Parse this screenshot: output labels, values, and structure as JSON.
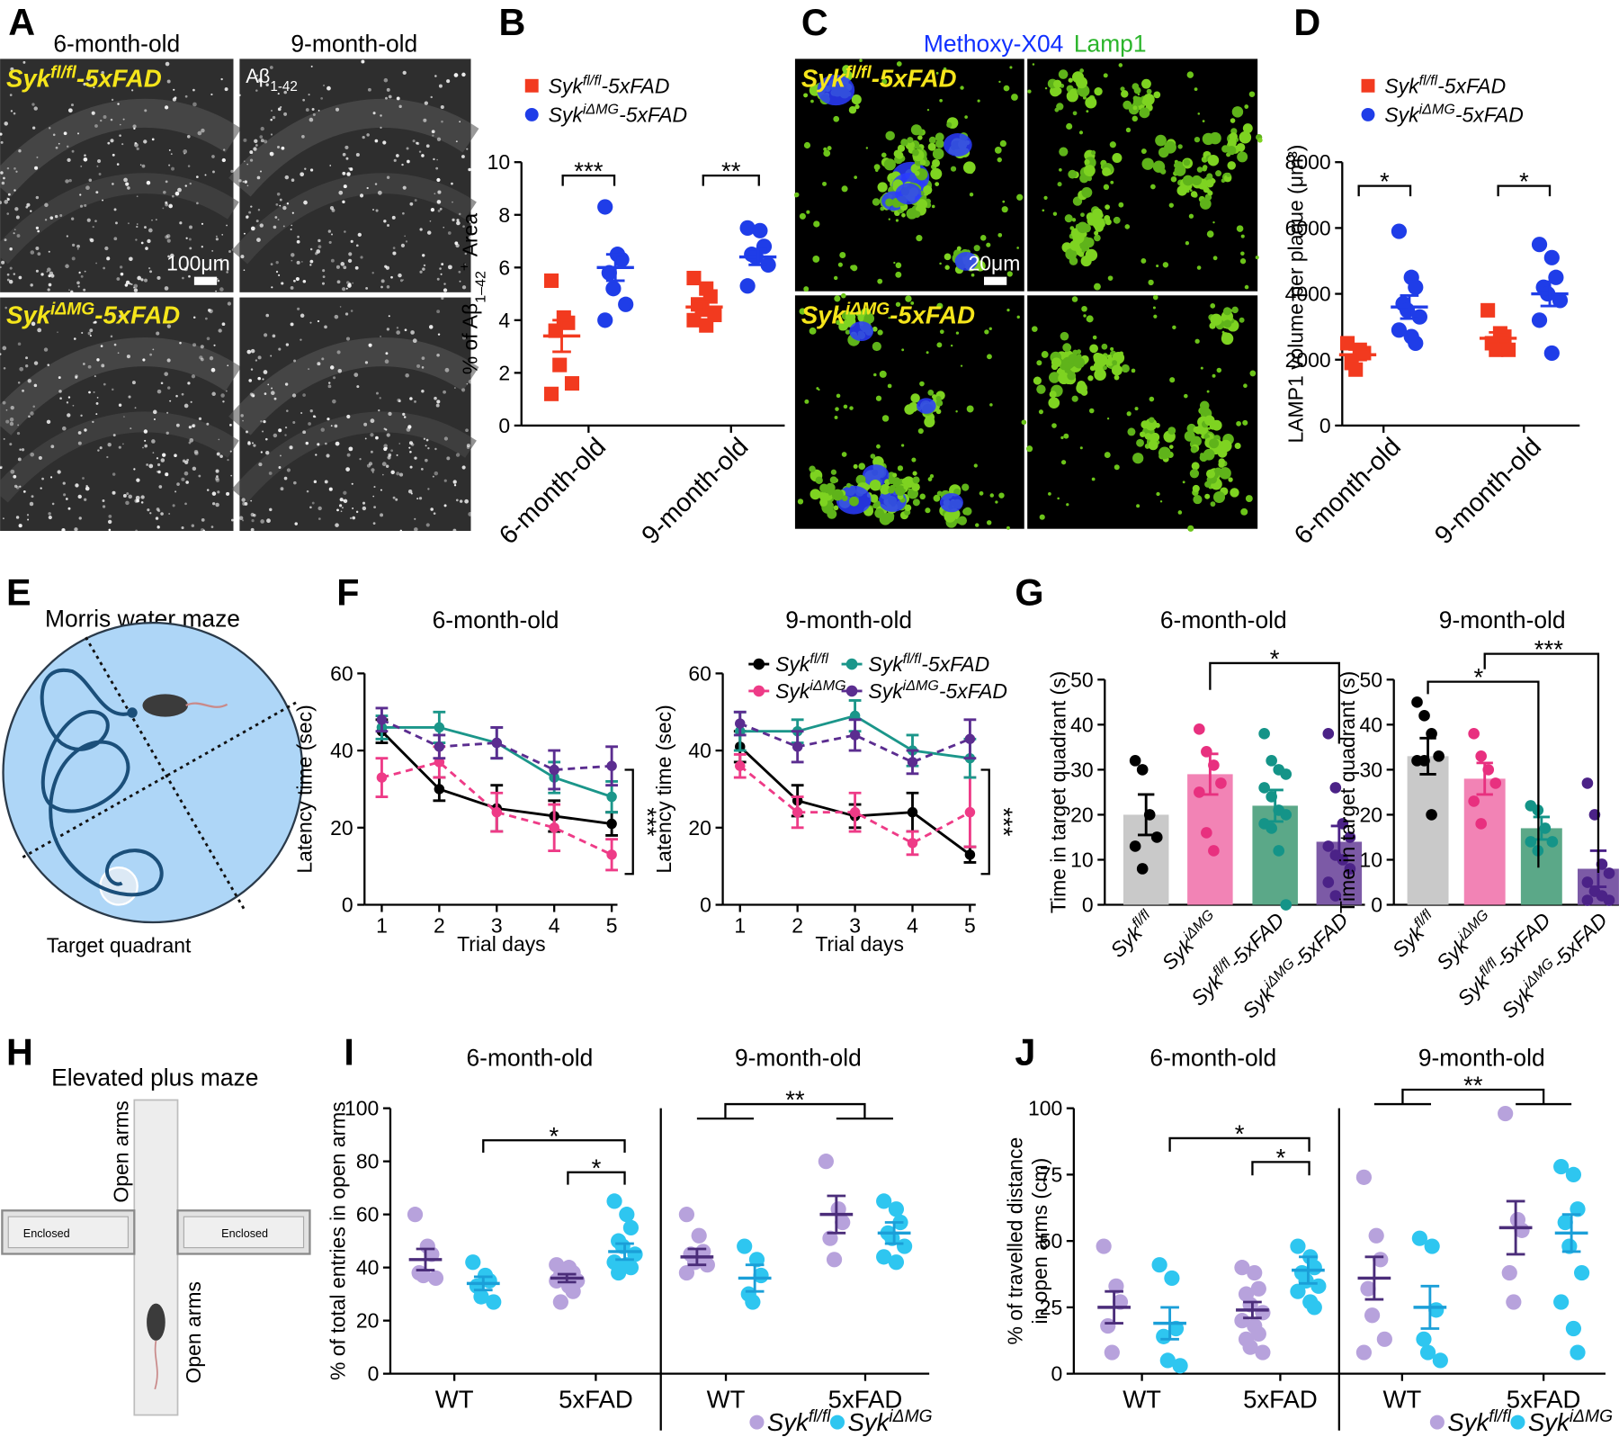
{
  "panel_letters": [
    "A",
    "B",
    "C",
    "D",
    "E",
    "F",
    "G",
    "H",
    "I",
    "J"
  ],
  "panel_a": {
    "column_titles": [
      "6-month-old",
      "9-month-old"
    ],
    "row_labels": [
      {
        "text": "Syk",
        "sup": "fl/fl",
        "after": "-5xFAD"
      },
      {
        "text": "Syk",
        "sup": "iΔMG",
        "after": "-5xFAD"
      }
    ],
    "stain": {
      "text": "Aβ",
      "sub": "1-42"
    },
    "scale_bar": "100μm"
  },
  "panel_c": {
    "stains": [
      "Methoxy-X04",
      "Lamp1"
    ],
    "scale_bar": "20μm"
  },
  "panel_e": {
    "title": "Morris water maze",
    "label": "Target quadrant"
  },
  "panel_h": {
    "title": "Elevated plus maze",
    "arm_labels": [
      "Open arms",
      "Open arms"
    ],
    "enclosed_labels": [
      "Enclosed",
      "Enclosed"
    ]
  },
  "chart_data": [
    {
      "type": "dot-sem",
      "categories": [
        "6-month-old",
        "9-month-old"
      ],
      "ylabel": {
        "text": "% of Aβ",
        "sub": "1–42",
        "sup": "+",
        "after": " Area"
      },
      "ylim": [
        0,
        10
      ],
      "yticks": [
        0,
        2,
        4,
        6,
        8,
        10
      ],
      "series": [
        {
          "name": {
            "text": "Syk",
            "sup": "fl/fl",
            "after": "-5xFAD"
          },
          "color": "#f23a1f",
          "marker": "square"
        },
        {
          "name": {
            "text": "Syk",
            "sup": "iΔMG",
            "after": "-5xFAD"
          },
          "color": "#1f3de8",
          "marker": "circle"
        }
      ],
      "panels": [
        {
          "series": [
            {
              "points": [
                [
                  5.5,
                  4.1,
                  3.9,
                  3.6,
                  2.3,
                  1.6,
                  1.2
                ],
                [
                  5.6,
                  5.2,
                  4.9,
                  4.6,
                  4.4,
                  4.2,
                  4.0,
                  3.8
                ]
              ],
              "mean": [
                3.4,
                4.5
              ],
              "sem": [
                0.6,
                0.2
              ]
            },
            {
              "points": [
                [
                  8.3,
                  6.5,
                  6.3,
                  5.8,
                  5.2,
                  4.6,
                  4.0
                ],
                [
                  7.5,
                  7.4,
                  6.8,
                  6.5,
                  6.4,
                  6.1,
                  5.3
                ]
              ],
              "mean": [
                6.0,
                6.4
              ],
              "sem": [
                0.5,
                0.3
              ]
            }
          ],
          "significance": [
            "***",
            "**"
          ]
        }
      ]
    },
    {
      "type": "dot-sem",
      "categories": [
        "6-month-old",
        "9-month-old"
      ],
      "ylabel": "LAMP1 volume per plaque (μm³)",
      "ylim": [
        0,
        8000
      ],
      "yticks": [
        0,
        2000,
        4000,
        6000,
        8000
      ],
      "series": [
        {
          "name": {
            "text": "Syk",
            "sup": "fl/fl",
            "after": "-5xFAD"
          },
          "color": "#f23a1f",
          "marker": "square"
        },
        {
          "name": {
            "text": "Syk",
            "sup": "iΔMG",
            "after": "-5xFAD"
          },
          "color": "#1f3de8",
          "marker": "circle"
        }
      ],
      "panels": [
        {
          "series": [
            {
              "points": [
                [
                  2500,
                  2300,
                  2200,
                  1900,
                  1700
                ],
                [
                  3500,
                  2800,
                  2700,
                  2500,
                  2300,
                  2300
                ]
              ],
              "mean": [
                2150,
                2650
              ],
              "sem": [
                160,
                180
              ]
            },
            {
              "points": [
                [
                  5900,
                  4500,
                  4200,
                  3700,
                  3500,
                  3300,
                  2900,
                  2700,
                  2500
                ],
                [
                  5500,
                  5100,
                  4500,
                  4200,
                  4000,
                  3800,
                  3200,
                  2200
                ]
              ],
              "mean": [
                3600,
                4000
              ],
              "sem": [
                350,
                370
              ]
            }
          ],
          "significance": [
            "*",
            "*"
          ]
        }
      ]
    },
    {
      "type": "line",
      "x": [
        1,
        2,
        3,
        4,
        5
      ],
      "xlim": [
        0.7,
        5.1
      ],
      "xticks": [
        1,
        2,
        3,
        4,
        5
      ],
      "xlabel": "Trial days",
      "ylabel": "Latency time (sec)",
      "ylim": [
        0,
        60
      ],
      "yticks": [
        0,
        20,
        40,
        60
      ],
      "series": [
        {
          "name": {
            "text": "Syk",
            "sup": "fl/fl"
          },
          "color": "#000000",
          "dash": false
        },
        {
          "name": {
            "text": "Syk",
            "sup": "iΔMG"
          },
          "color": "#ee3b87",
          "dash": true
        },
        {
          "name": {
            "text": "Syk",
            "sup": "fl/fl",
            "after": "-5xFAD"
          },
          "color": "#1b968a",
          "dash": false
        },
        {
          "name": {
            "text": "Syk",
            "sup": "iΔMG",
            "after": "-5xFAD"
          },
          "color": "#5b2d90",
          "dash": true
        }
      ],
      "panels": [
        {
          "title": "6-month-old",
          "values": [
            [
              45,
              30,
              25,
              23,
              21
            ],
            [
              33,
              37,
              24,
              20,
              13
            ],
            [
              46,
              46,
              42,
              33,
              28
            ],
            [
              48,
              41,
              42,
              35,
              36
            ]
          ],
          "err": [
            [
              3,
              3,
              6,
              4,
              3
            ],
            [
              5,
              4,
              5,
              6,
              4
            ],
            [
              3,
              4,
              4,
              4,
              4
            ],
            [
              3,
              3,
              4,
              5,
              5
            ]
          ],
          "significance": "***"
        },
        {
          "title": "9-month-old",
          "values": [
            [
              41,
              27,
              23,
              24,
              13
            ],
            [
              36,
              24,
              24,
              16,
              24
            ],
            [
              45,
              45,
              49,
              40,
              38
            ],
            [
              47,
              41,
              44,
              37,
              43
            ]
          ],
          "err": [
            [
              4,
              4,
              3,
              5,
              2
            ],
            [
              3,
              4,
              5,
              3,
              9
            ],
            [
              5,
              3,
              4,
              4,
              5
            ],
            [
              3,
              4,
              4,
              3,
              5
            ]
          ],
          "significance": "***"
        }
      ]
    },
    {
      "type": "bar",
      "categories": [
        {
          "text": "Syk",
          "sup": "fl/fl"
        },
        {
          "text": "Syk",
          "sup": "iΔMG"
        },
        {
          "text": "Syk",
          "sup": "fl/fl",
          "after": "-5xFAD"
        },
        {
          "text": "Syk",
          "sup": "iΔMG",
          "after": "-5xFAD"
        }
      ],
      "colors": [
        "#c9c9c9",
        "#f283b5",
        "#5ba888",
        "#7c5aa6"
      ],
      "point_colors": [
        "#000000",
        "#e8307f",
        "#149488",
        "#4b2287"
      ],
      "ylabel": "Time in target quadrant (s)",
      "ylim": [
        0,
        50
      ],
      "yticks": [
        0,
        10,
        20,
        30,
        40,
        50
      ],
      "panels": [
        {
          "title": "6-month-old",
          "values": [
            20,
            29,
            22,
            14
          ],
          "sem": [
            4.5,
            4.5,
            3.5,
            3.5
          ],
          "points": [
            [
              32,
              30,
              20,
              15,
              13,
              8
            ],
            [
              39,
              34,
              31,
              27,
              25,
              16,
              12
            ],
            [
              38,
              32,
              30,
              29,
              26,
              24,
              21,
              20,
              18,
              17,
              12,
              0
            ],
            [
              38,
              26,
              18,
              15,
              13,
              11,
              10,
              8,
              5,
              2
            ]
          ],
          "significance": [
            "*"
          ]
        },
        {
          "title": "9-month-old",
          "values": [
            33,
            28,
            17,
            8
          ],
          "sem": [
            4,
            3.5,
            2.5,
            4
          ],
          "points": [
            [
              45,
              42,
              38,
              33,
              32,
              32,
              20
            ],
            [
              38,
              33,
              30,
              27,
              23,
              18
            ],
            [
              22,
              21,
              17,
              14,
              14,
              12
            ],
            [
              27,
              20,
              9,
              7,
              5,
              3,
              2,
              1,
              1
            ]
          ],
          "significance": [
            "*",
            "***"
          ]
        }
      ]
    },
    {
      "type": "dot-sem",
      "categories": [
        "WT",
        "5xFAD"
      ],
      "ylabel": "% of total entries in open arms",
      "ylim": [
        0,
        100
      ],
      "yticks": [
        0,
        20,
        40,
        60,
        80,
        100
      ],
      "series": [
        {
          "name": {
            "text": "Syk",
            "sup": "fl/fl"
          },
          "color": "#b7a2dc",
          "mean_color": "#4b2d7a",
          "marker": "circle"
        },
        {
          "name": {
            "text": "Syk",
            "sup": "iΔMG"
          },
          "color": "#2ec6f0",
          "mean_color": "#1b9fd8",
          "marker": "circle"
        }
      ],
      "panels": [
        {
          "title": "6-month-old",
          "series": [
            {
              "points": [
                [
                  60,
                  48,
                  45,
                  38,
                  37,
                  36
                ],
                [
                  41,
                  40,
                  38,
                  37,
                  36,
                  35,
                  35,
                  33,
                  31,
                  27
                ]
              ],
              "mean": [
                43,
                36
              ],
              "sem": [
                4,
                1.5
              ]
            },
            {
              "points": [
                [
                  42,
                  37,
                  35,
                  33,
                  29,
                  27
                ],
                [
                  65,
                  60,
                  55,
                  50,
                  48,
                  45,
                  42,
                  41,
                  40,
                  38
                ]
              ],
              "mean": [
                34,
                46
              ],
              "sem": [
                2.5,
                3
              ]
            }
          ],
          "significance": [
            "*",
            "*"
          ]
        },
        {
          "title": "9-month-old",
          "series": [
            {
              "points": [
                [
                  60,
                  52,
                  46,
                  45,
                  42,
                  41,
                  38
                ],
                [
                  80,
                  62,
                  57,
                  51,
                  43
                ]
              ],
              "mean": [
                44,
                60
              ],
              "sem": [
                3,
                7
              ]
            },
            {
              "points": [
                [
                  48,
                  43,
                  37,
                  30,
                  27
                ],
                [
                  65,
                  62,
                  57,
                  53,
                  51,
                  48,
                  44,
                  42
                ]
              ],
              "mean": [
                36,
                53
              ],
              "sem": [
                5,
                4
              ]
            }
          ],
          "significance": [
            "**"
          ]
        }
      ]
    },
    {
      "type": "dot-sem",
      "categories": [
        "WT",
        "5xFAD"
      ],
      "ylabel": [
        "% of travelled distance",
        "in open arms (cm)"
      ],
      "ylim": [
        0,
        100
      ],
      "yticks": [
        0,
        25,
        50,
        75,
        100
      ],
      "series": [
        {
          "name": {
            "text": "Syk",
            "sup": "fl/fl"
          },
          "color": "#b7a2dc",
          "mean_color": "#4b2d7a",
          "marker": "circle"
        },
        {
          "name": {
            "text": "Syk",
            "sup": "iΔMG"
          },
          "color": "#2ec6f0",
          "mean_color": "#1b9fd8",
          "marker": "circle"
        }
      ],
      "panels": [
        {
          "title": "6-month-old",
          "series": [
            {
              "points": [
                [
                  48,
                  33,
                  27,
                  18,
                  8
                ],
                [
                  40,
                  38,
                  32,
                  30,
                  26,
                  23,
                  20,
                  18,
                  15,
                  13,
                  10,
                  8
                ]
              ],
              "mean": [
                25,
                24
              ],
              "sem": [
                6,
                3
              ]
            },
            {
              "points": [
                [
                  41,
                  36,
                  17,
                  14,
                  5,
                  3
                ],
                [
                  48,
                  44,
                  40,
                  38,
                  35,
                  33,
                  31,
                  27,
                  25
                ]
              ],
              "mean": [
                19,
                39
              ],
              "sem": [
                6,
                5
              ]
            }
          ],
          "significance": [
            "*",
            "*"
          ]
        },
        {
          "title": "9-month-old",
          "series": [
            {
              "points": [
                [
                  74,
                  52,
                  43,
                  32,
                  22,
                  13,
                  8
                ],
                [
                  98,
                  58,
                  54,
                  38,
                  27
                ]
              ],
              "mean": [
                36,
                55
              ],
              "sem": [
                8,
                10
              ]
            },
            {
              "points": [
                [
                  51,
                  48,
                  24,
                  13,
                  8,
                  5
                ],
                [
                  78,
                  75,
                  62,
                  57,
                  48,
                  38,
                  27,
                  17,
                  8
                ]
              ],
              "mean": [
                25,
                53
              ],
              "sem": [
                8,
                7
              ]
            }
          ],
          "significance": [
            "**"
          ]
        }
      ]
    }
  ]
}
